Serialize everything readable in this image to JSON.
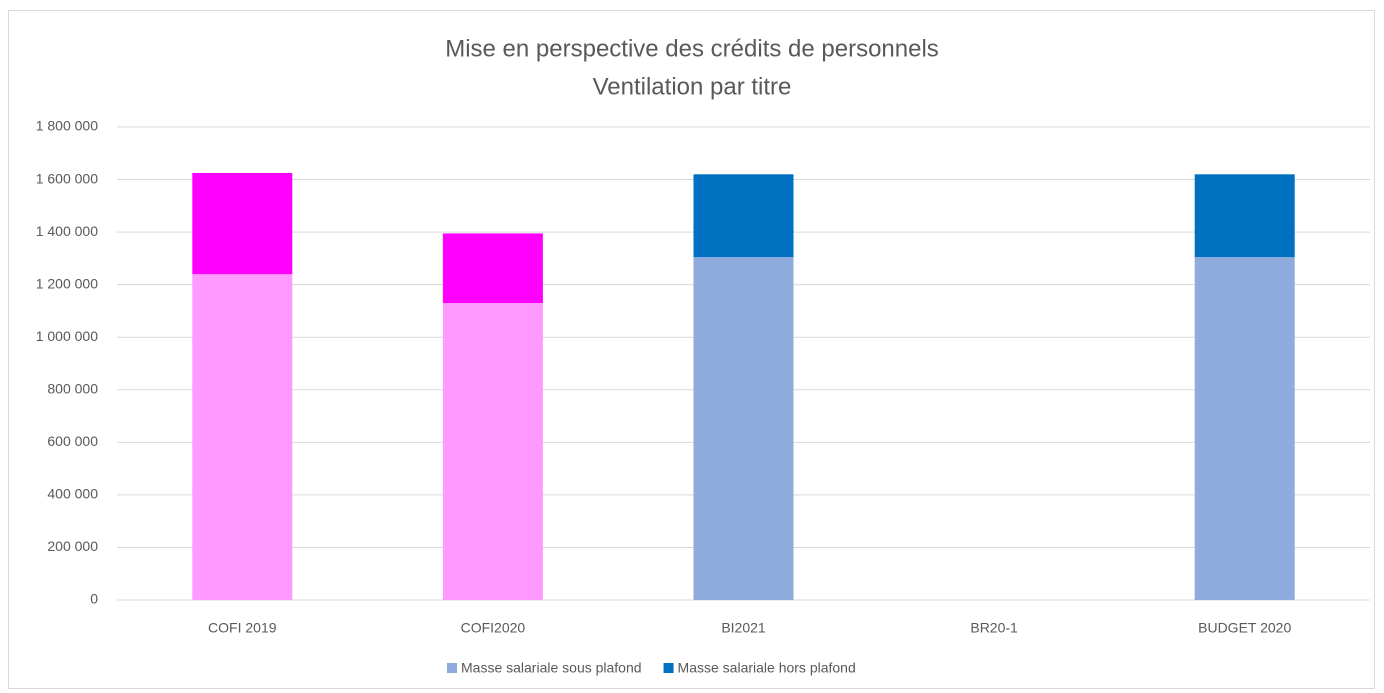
{
  "chart_data": {
    "type": "stacked_bar",
    "title": "Mise en perspective des crédits de personnels",
    "subtitle": "Ventilation par titre",
    "categories": [
      "COFI 2019",
      "COFI2020",
      "BI2021",
      "BR20-1",
      "BUDGET 2020"
    ],
    "series": [
      {
        "name": "Masse salariale sous plafond",
        "color": "#8faadc",
        "colors": [
          "#ff99ff",
          "#ff99ff",
          "#8faadc",
          "#8faadc",
          "#8faadc"
        ],
        "values": [
          1240000,
          1130000,
          1305000,
          null,
          1305000
        ]
      },
      {
        "name": "Masse salariale hors plafond",
        "color": "#0070c0",
        "colors": [
          "#ff00ff",
          "#ff00ff",
          "#0070c0",
          "#0070c0",
          "#0070c0"
        ],
        "values": [
          385000,
          265000,
          315000,
          null,
          315000
        ]
      }
    ],
    "ylim": [
      0,
      1800000
    ],
    "yticks": [
      0,
      {
        "value": 200000,
        "label": "200 000"
      },
      {
        "value": 400000,
        "label": "400 000"
      },
      {
        "value": 600000,
        "label": "600 000"
      },
      {
        "value": 800000,
        "label": "800 000"
      },
      {
        "value": 1000000,
        "label": "1 000 000"
      },
      {
        "value": 1200000,
        "label": "1 200 000"
      },
      {
        "value": 1400000,
        "label": "1 400 000"
      },
      {
        "value": 1600000,
        "label": "1 600 000"
      },
      {
        "value": 1800000,
        "label": "1 800 000"
      }
    ],
    "grid": true,
    "legend": "bottom"
  }
}
